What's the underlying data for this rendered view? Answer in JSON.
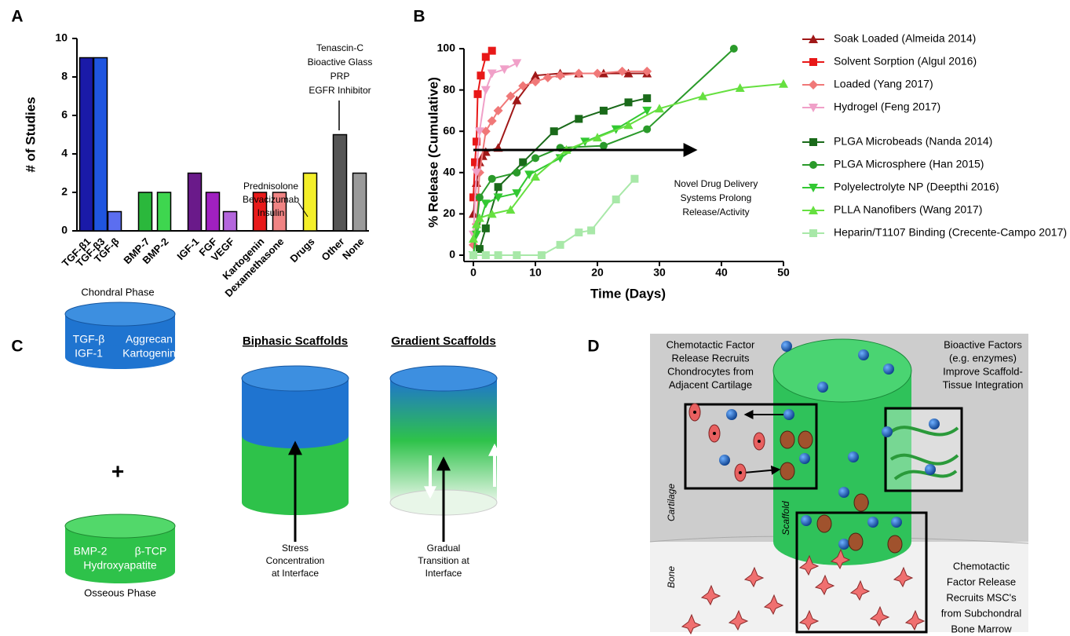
{
  "panel_labels": [
    "A",
    "B",
    "C",
    "D"
  ],
  "chart_data": [
    {
      "type": "bar",
      "ylabel": "# of Studies",
      "categories": [
        "TGF-β1",
        "TGF-β3",
        "TGF-β",
        "BMP-7",
        "BMP-2",
        "IGF-1",
        "FGF",
        "VEGF",
        "Kartogenin",
        "Dexamethasone",
        "Drugs",
        "Other",
        "None"
      ],
      "values": [
        9,
        9,
        1,
        2,
        2,
        3,
        2,
        1,
        2,
        2,
        3,
        5,
        3
      ],
      "colors": [
        "#1a1aa8",
        "#1f55e0",
        "#5b6ef0",
        "#2bb83c",
        "#3ed64f",
        "#6a1a8a",
        "#a020c0",
        "#b466dc",
        "#e81a1a",
        "#f08484",
        "#f4ef2a",
        "#555555",
        "#9a9a9a"
      ],
      "ylim": [
        0,
        10
      ],
      "yticks": [
        0,
        2,
        4,
        6,
        8,
        10
      ],
      "annotations": [
        [
          "Prednisolone",
          "Bevacizumab",
          "Insulin"
        ],
        [
          "Tenascin-C",
          "Bioactive Glass",
          "PRP",
          "EGFR Inhibitor"
        ]
      ]
    },
    {
      "type": "line",
      "xlabel": "Time (Days)",
      "ylabel": "% Release (Cumulative)",
      "xlim": [
        0,
        50
      ],
      "ylim": [
        0,
        100
      ],
      "xticks": [
        0,
        10,
        20,
        30,
        40,
        50
      ],
      "yticks": [
        0,
        20,
        40,
        60,
        80,
        100
      ],
      "annotation": [
        "Novel Drug Delivery",
        "Systems Prolong",
        "Release/Activity"
      ],
      "series": [
        {
          "name": "Soak Loaded (Almeida 2014)",
          "color": "#a01818",
          "marker": "triangle-up",
          "x": [
            0,
            0.5,
            1,
            1.5,
            2,
            4,
            7,
            10,
            14,
            17,
            21,
            25,
            28
          ],
          "values": [
            20,
            35,
            45,
            48,
            50,
            52,
            75,
            87,
            88,
            88,
            88,
            88,
            88
          ]
        },
        {
          "name": "Solvent Sorption (Algul 2016)",
          "color": "#e81818",
          "marker": "square",
          "x": [
            0,
            0.25,
            0.5,
            0.7,
            1.2,
            2,
            3
          ],
          "values": [
            28,
            45,
            55,
            78,
            87,
            96,
            99
          ]
        },
        {
          "name": "Loaded (Yang 2017)",
          "color": "#f07878",
          "marker": "diamond",
          "x": [
            0,
            0.5,
            1,
            2,
            3,
            4,
            6,
            8,
            10,
            12,
            14,
            17,
            20,
            24,
            28
          ],
          "values": [
            5,
            15,
            40,
            60,
            65,
            70,
            77,
            82,
            84,
            86,
            87,
            88,
            88,
            89,
            89
          ]
        },
        {
          "name": "Hydrogel (Feng 2017)",
          "color": "#f0a0c8",
          "marker": "triangle-down",
          "x": [
            0,
            0.5,
            1,
            2,
            3,
            5,
            7
          ],
          "values": [
            10,
            40,
            60,
            80,
            88,
            90,
            93
          ]
        },
        {
          "name": "PLGA Microbeads (Nanda 2014)",
          "color": "#1a6a1a",
          "marker": "square",
          "x": [
            0,
            1,
            2,
            4,
            8,
            13,
            17,
            21,
            25,
            28
          ],
          "values": [
            0,
            3,
            13,
            33,
            45,
            60,
            66,
            70,
            74,
            76
          ]
        },
        {
          "name": "PLGA Microsphere (Han 2015)",
          "color": "#2a9a2a",
          "marker": "circle",
          "x": [
            0,
            1,
            3,
            7,
            10,
            14,
            21,
            28,
            42
          ],
          "values": [
            0,
            28,
            37,
            40,
            47,
            52,
            53,
            61,
            100
          ]
        },
        {
          "name": "Polyelectrolyte NP (Deepthi 2016)",
          "color": "#32c832",
          "marker": "triangle-down",
          "x": [
            0,
            0.5,
            2,
            4,
            7,
            9,
            14,
            18,
            23,
            28
          ],
          "values": [
            0,
            10,
            25,
            28,
            30,
            39,
            47,
            55,
            61,
            70
          ]
        },
        {
          "name": "PLLA Nanofibers (Wang 2017)",
          "color": "#66e040",
          "marker": "triangle-up",
          "x": [
            0,
            0.5,
            1,
            3,
            6,
            10,
            15,
            20,
            25,
            30,
            37,
            43,
            50
          ],
          "values": [
            8,
            15,
            18,
            20,
            22,
            38,
            51,
            57,
            63,
            71,
            77,
            81,
            83
          ]
        },
        {
          "name": "Heparin/T1107 Binding (Crecente-Campo 2017)",
          "color": "#a8e8a8",
          "marker": "square",
          "x": [
            0,
            2,
            4,
            7,
            11,
            14,
            17,
            19,
            23,
            26
          ],
          "values": [
            0,
            0,
            0,
            0,
            0,
            5,
            11,
            12,
            27,
            37
          ]
        }
      ]
    }
  ],
  "panel_c": {
    "chondral_phase": "Chondral Phase",
    "chondral_factors": [
      "TGF-β",
      "Aggrecan",
      "IGF-1",
      "Kartogenin"
    ],
    "plus": "+",
    "osseous_factors": [
      "BMP-2",
      "β-TCP",
      "Hydroxyapatite"
    ],
    "osseous_phase": "Osseous Phase",
    "biphasic_title": "Biphasic Scaffolds",
    "biphasic_note": [
      "Stress",
      "Concentration",
      "at Interface"
    ],
    "gradient_title": "Gradient Scaffolds",
    "gradient_note": [
      "Gradual",
      "Transition at",
      "Interface"
    ]
  },
  "panel_d": {
    "top_left": [
      "Chemotactic Factor",
      "Release Recruits",
      "Chondrocytes from",
      "Adjacent Cartilage"
    ],
    "top_right": [
      "Bioactive Factors",
      "(e.g. enzymes)",
      "Improve Scaffold-",
      "Tissue Integration"
    ],
    "bottom_right": [
      "Chemotactic",
      "Factor Release",
      "Recruits MSC's",
      "from Subchondral",
      "Bone Marrow"
    ],
    "cartilage": "Cartilage",
    "scaffold": "Scaffold",
    "bone": "Bone"
  }
}
